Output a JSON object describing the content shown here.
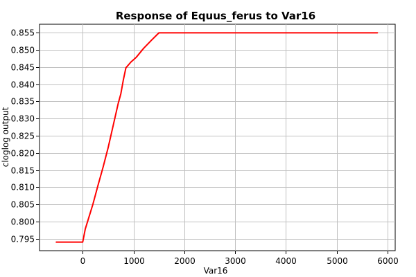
{
  "chart_data": {
    "type": "line",
    "title": "Response of Equus_ferus to Var16",
    "xlabel": "Var16",
    "ylabel": "cloglog output",
    "xlim": [
      -850,
      6150
    ],
    "ylim": [
      0.7915,
      0.8575
    ],
    "x_ticks": [
      0,
      1000,
      2000,
      3000,
      4000,
      5000,
      6000
    ],
    "y_ticks": [
      0.795,
      0.8,
      0.805,
      0.81,
      0.815,
      0.82,
      0.825,
      0.83,
      0.835,
      0.84,
      0.845,
      0.85,
      0.855
    ],
    "y_tick_decimals": 3,
    "grid": true,
    "series": [
      {
        "color": "#ff0000",
        "x": [
          -520,
          0,
          20,
          50,
          100,
          200,
          300,
          400,
          500,
          600,
          700,
          750,
          800,
          850,
          950,
          1050,
          1200,
          1350,
          1500,
          1550,
          5800
        ],
        "y": [
          0.794,
          0.794,
          0.7955,
          0.7978,
          0.8002,
          0.805,
          0.8105,
          0.8158,
          0.8215,
          0.828,
          0.8345,
          0.8372,
          0.8413,
          0.8448,
          0.8465,
          0.8478,
          0.8505,
          0.8528,
          0.855,
          0.855,
          0.855
        ]
      }
    ]
  }
}
